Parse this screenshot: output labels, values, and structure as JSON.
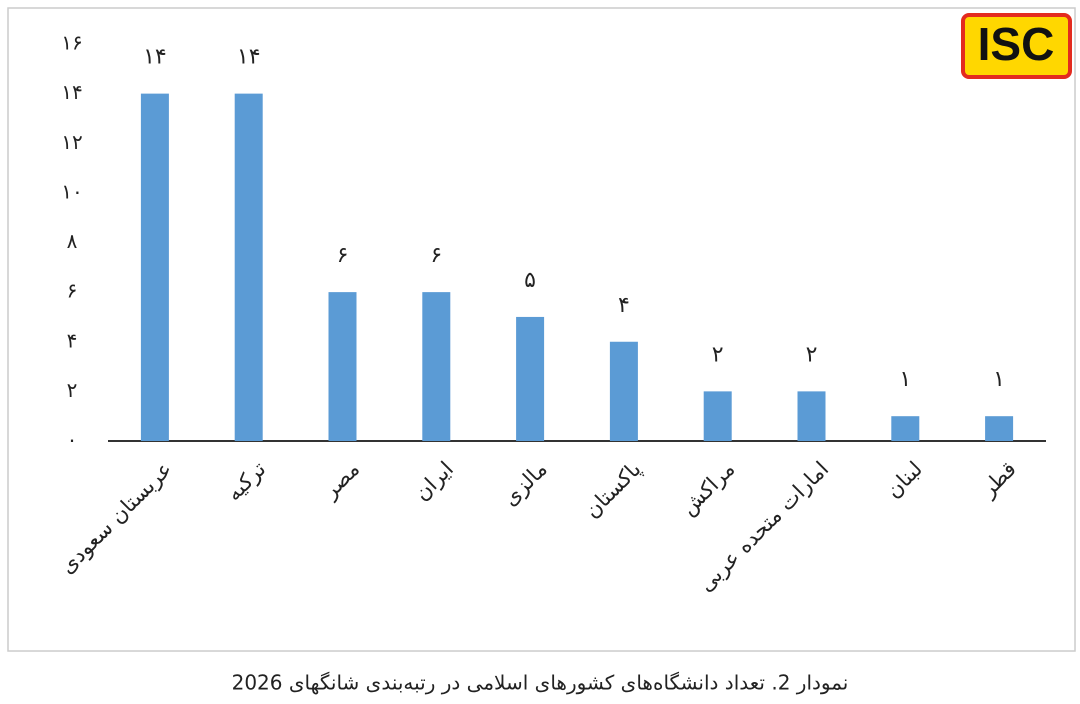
{
  "logo": "ISC",
  "chart_data": {
    "type": "bar",
    "caption": "نمودار 2. تعداد دانشگاه‌های کشورهای اسلامی در رتبه‌بندی شانگهای 2026",
    "categories": [
      "عربستان سعودی",
      "ترکیه",
      "مصر",
      "ایران",
      "مالزی",
      "پاکستان",
      "مراکش",
      "امارات متحده عربی",
      "لبنان",
      "قطر"
    ],
    "values": [
      14,
      14,
      6,
      6,
      5,
      4,
      2,
      2,
      1,
      1
    ],
    "value_labels": [
      "۱۴",
      "۱۴",
      "۶",
      "۶",
      "۵",
      "۴",
      "۲",
      "۲",
      "۱",
      "۱"
    ],
    "color": "#5b9bd5",
    "ylim": [
      0,
      16
    ],
    "yticks": [
      {
        "value": 0,
        "label": "۰"
      },
      {
        "value": 2,
        "label": "۲"
      },
      {
        "value": 4,
        "label": "۴"
      },
      {
        "value": 6,
        "label": "۶"
      },
      {
        "value": 8,
        "label": "۸"
      },
      {
        "value": 10,
        "label": "۱۰"
      },
      {
        "value": 12,
        "label": "۱۲"
      },
      {
        "value": 14,
        "label": "۱۴"
      },
      {
        "value": 16,
        "label": "۱۶"
      }
    ],
    "grid": false
  }
}
